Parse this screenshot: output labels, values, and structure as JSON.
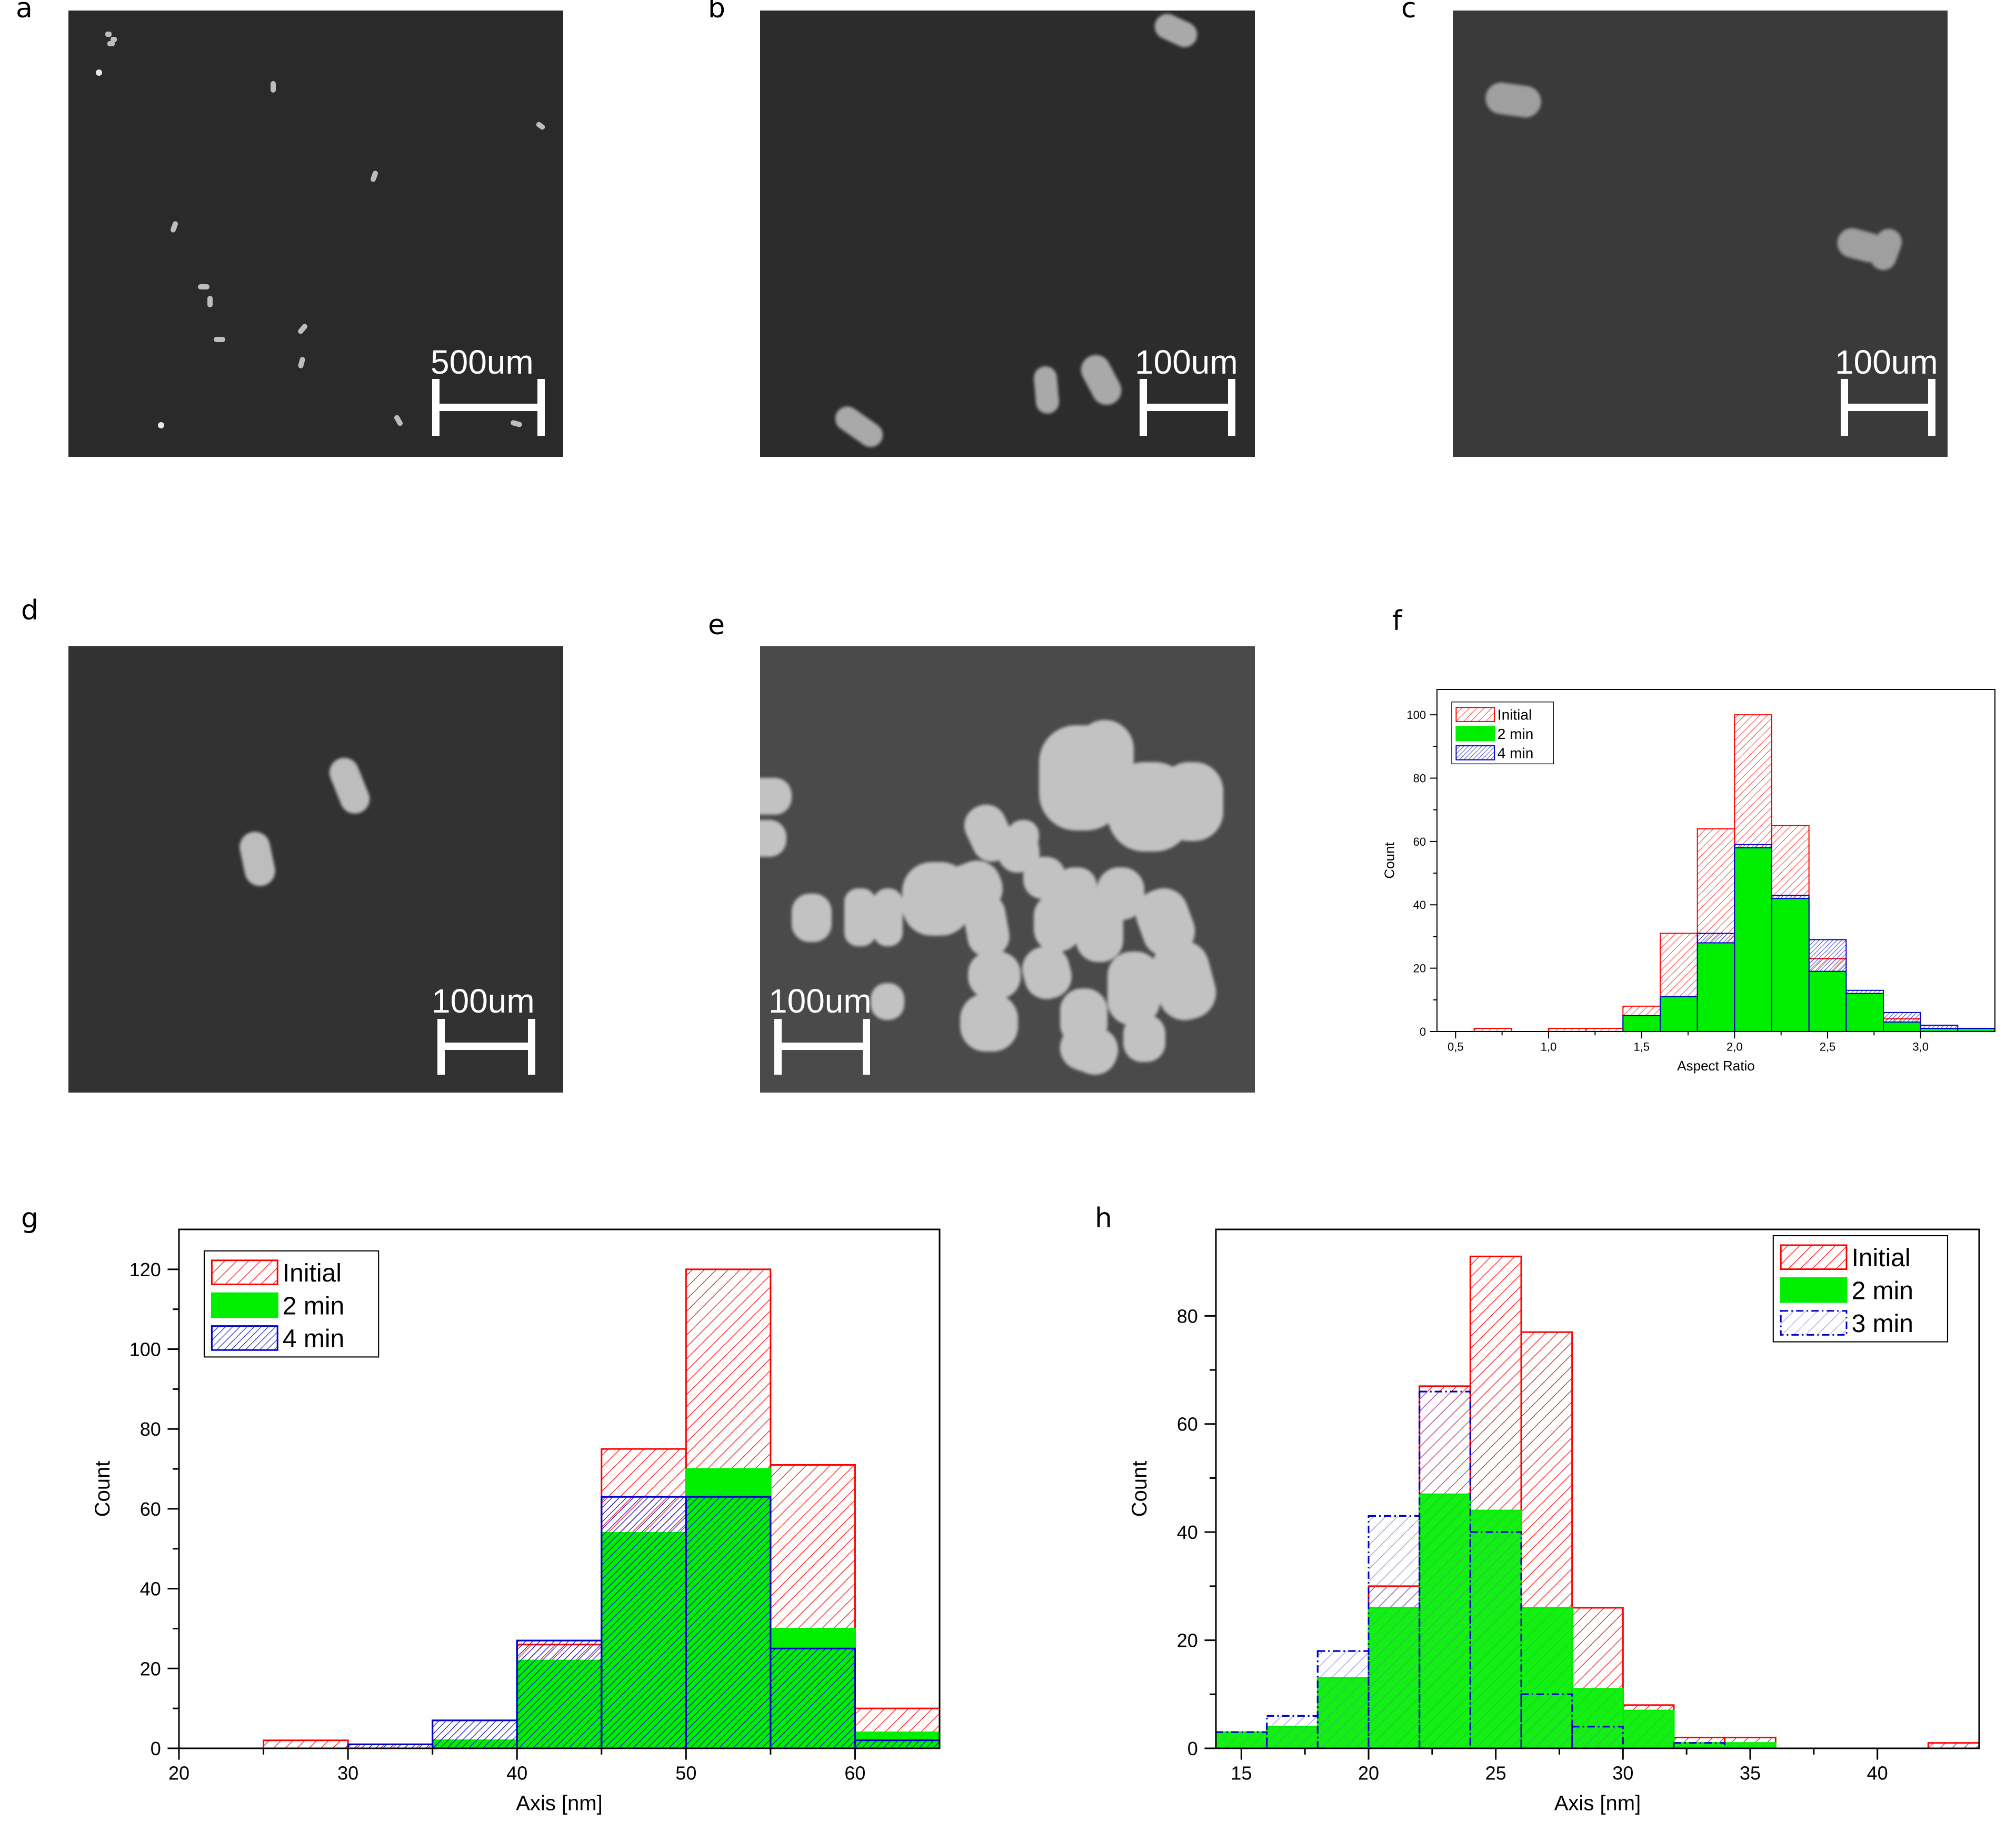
{
  "panels": {
    "a": {
      "letter": "a",
      "scale_label": "500um"
    },
    "b": {
      "letter": "b",
      "scale_label": "100um"
    },
    "c": {
      "letter": "c",
      "scale_label": "100um"
    },
    "d": {
      "letter": "d",
      "scale_label": "100um"
    },
    "e": {
      "letter": "e",
      "scale_label": "100um"
    },
    "f": {
      "letter": "f"
    },
    "g": {
      "letter": "g"
    },
    "h": {
      "letter": "h"
    }
  },
  "colors": {
    "initial": "#ff0000",
    "min2": "#00ee00",
    "min4": "#0000cc",
    "sem_background": "#2a2a2a"
  },
  "chart_data": [
    {
      "id": "f",
      "type": "bar",
      "xlabel": "Aspect Ratio",
      "ylabel": "Count",
      "xlim": [
        0.4,
        3.4
      ],
      "ylim": [
        0,
        108
      ],
      "xticks": [
        "0,5",
        "1,0",
        "1,5",
        "2,0",
        "2,5",
        "3,0"
      ],
      "yticks": [
        "0",
        "20",
        "40",
        "60",
        "80",
        "100"
      ],
      "legend": "top-left",
      "bin_width": 0.2,
      "bin_starts": [
        0.6,
        1.0,
        1.2,
        1.4,
        1.6,
        1.8,
        2.0,
        2.2,
        2.4,
        2.6,
        2.8,
        3.0,
        3.2
      ],
      "series": [
        {
          "name": "Initial",
          "style": "hatch-red",
          "values": [
            1,
            1,
            1,
            8,
            31,
            64,
            100,
            65,
            23,
            12,
            4,
            1,
            0
          ]
        },
        {
          "name": "4 min",
          "style": "hatch-blue",
          "values": [
            0,
            0,
            0,
            0,
            5,
            31,
            59,
            43,
            29,
            13,
            6,
            2,
            1
          ]
        },
        {
          "name": "2 min",
          "style": "solid-green",
          "values": [
            0,
            0,
            0,
            5,
            11,
            28,
            58,
            42,
            19,
            12,
            3,
            1,
            1
          ]
        }
      ]
    },
    {
      "id": "g",
      "type": "bar",
      "xlabel": "Axis [nm]",
      "ylabel": "Count",
      "xlim": [
        20,
        65
      ],
      "ylim": [
        0,
        130
      ],
      "xticks": [
        "20",
        "30",
        "40",
        "50",
        "60"
      ],
      "yticks": [
        "0",
        "20",
        "40",
        "60",
        "80",
        "100",
        "120"
      ],
      "legend": "top-left",
      "bin_width": 5,
      "bin_starts": [
        25,
        30,
        35,
        40,
        45,
        50,
        55,
        60
      ],
      "series": [
        {
          "name": "Initial",
          "style": "hatch-red",
          "values": [
            2,
            1,
            2,
            26,
            75,
            120,
            71,
            10
          ]
        },
        {
          "name": "2 min",
          "style": "solid-green",
          "values": [
            0,
            0,
            2,
            22,
            54,
            70,
            30,
            4
          ]
        },
        {
          "name": "4 min",
          "style": "hatch-blue",
          "values": [
            0,
            1,
            7,
            27,
            63,
            63,
            25,
            2
          ]
        }
      ]
    },
    {
      "id": "h",
      "type": "bar",
      "xlabel": "Axis [nm]",
      "ylabel": "Count",
      "xlim": [
        14,
        44
      ],
      "ylim": [
        0,
        96
      ],
      "xticks": [
        "15",
        "20",
        "25",
        "30",
        "35",
        "40"
      ],
      "yticks": [
        "0",
        "20",
        "40",
        "60",
        "80"
      ],
      "legend": "top-right",
      "bin_width": 2,
      "bin_starts": [
        14,
        16,
        18,
        20,
        22,
        24,
        26,
        28,
        30,
        32,
        34,
        42
      ],
      "series": [
        {
          "name": "Initial",
          "style": "hatch-red",
          "values": [
            0,
            0,
            0,
            30,
            67,
            91,
            77,
            26,
            8,
            2,
            2,
            1
          ]
        },
        {
          "name": "3 min",
          "style": "hatch-blue-dashed",
          "values": [
            3,
            6,
            18,
            43,
            66,
            40,
            10,
            4,
            0,
            1,
            0,
            0
          ]
        },
        {
          "name": "2 min",
          "style": "solid-green-overlay",
          "values": [
            3,
            4,
            13,
            26,
            47,
            44,
            26,
            11,
            7,
            1,
            1,
            0
          ]
        }
      ]
    }
  ]
}
